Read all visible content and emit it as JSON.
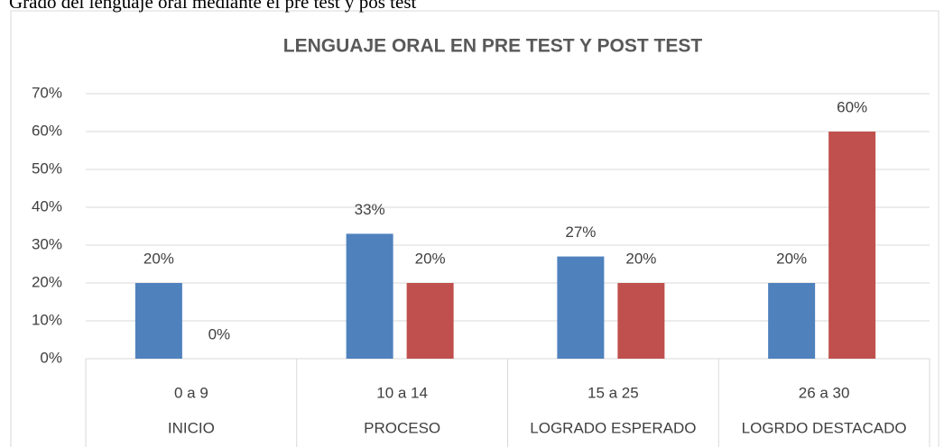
{
  "caption": "Grado del lenguaje oral mediante el pre test y pos test",
  "chart_data": {
    "type": "bar",
    "title": "LENGUAJE ORAL EN PRE TEST Y POST TEST",
    "categories": [
      "0 a 9",
      "10 a 14",
      "15 a 25",
      "26 a 30"
    ],
    "category_groups": [
      "INICIO",
      "PROCESO",
      "LOGRADO ESPERADO",
      "LOGRDO DESTACADO"
    ],
    "series": [
      {
        "color": "#4f81bd",
        "values": [
          20,
          33,
          27,
          20
        ],
        "value_labels": [
          "20%",
          "33%",
          "27%",
          "20%"
        ]
      },
      {
        "color": "#c0504d",
        "values": [
          0,
          20,
          20,
          60
        ],
        "value_labels": [
          "0%",
          "20%",
          "20%",
          "60%"
        ]
      }
    ],
    "ylim": [
      0,
      70
    ],
    "yticks": [
      {
        "value": 0,
        "label": "0%"
      },
      {
        "value": 10,
        "label": "10%"
      },
      {
        "value": 20,
        "label": "20%"
      },
      {
        "value": 30,
        "label": "30%"
      },
      {
        "value": 40,
        "label": "40%"
      },
      {
        "value": 50,
        "label": "50%"
      },
      {
        "value": 60,
        "label": "60%"
      },
      {
        "value": 70,
        "label": "70%"
      }
    ],
    "grid": true
  }
}
